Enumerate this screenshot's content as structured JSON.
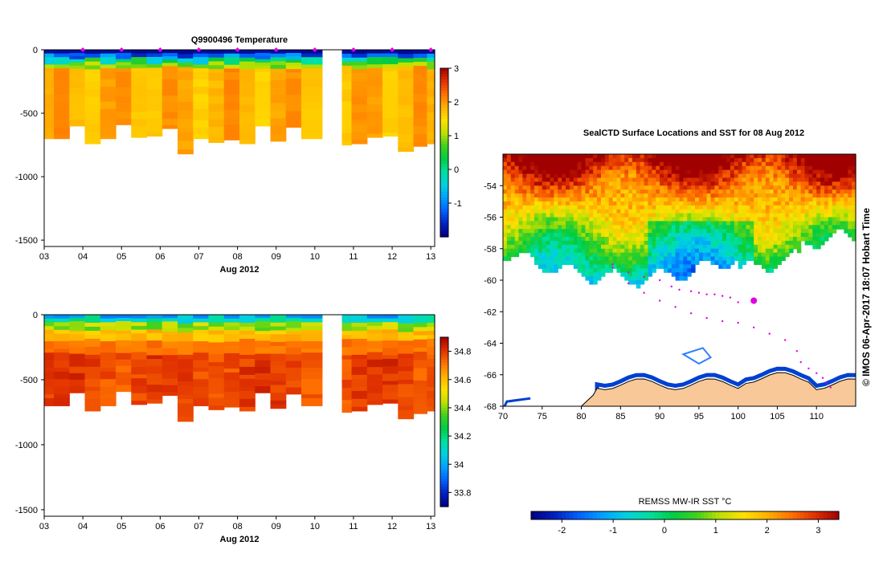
{
  "chart_data": [
    {
      "id": "temp",
      "type": "heatmap",
      "title": "Q9900496  Temperature",
      "xlabel": "Aug 2012",
      "x_ticks": [
        "03",
        "04",
        "05",
        "06",
        "07",
        "08",
        "09",
        "10",
        "11",
        "12",
        "13"
      ],
      "x_range": [
        3.0,
        13.1
      ],
      "y_ticks": [
        0,
        -500,
        -1000,
        -1500
      ],
      "y_range": [
        -1550,
        0
      ],
      "gap": [
        10.2,
        10.7
      ],
      "profile_days": [
        3.05,
        3.45,
        3.85,
        4.25,
        4.65,
        5.05,
        5.45,
        5.85,
        6.25,
        6.65,
        7.05,
        7.45,
        7.85,
        8.25,
        8.65,
        9.05,
        9.45,
        9.85,
        10.75,
        11.15,
        11.55,
        11.95,
        12.35,
        12.75,
        13.05
      ],
      "profile_bottom_depth": [
        700,
        700,
        600,
        740,
        700,
        590,
        690,
        680,
        620,
        820,
        700,
        730,
        710,
        740,
        600,
        720,
        610,
        700,
        750,
        740,
        690,
        680,
        800,
        760,
        740
      ],
      "surface_markers": [
        4.0,
        5.0,
        6.0,
        7.0,
        8.0,
        9.0,
        10.0,
        11.0,
        12.0,
        13.0
      ],
      "colorbar": {
        "min": -2.0,
        "max": 3.0,
        "ticks": [
          3,
          2,
          1,
          0,
          -1
        ],
        "colors": [
          "#000080",
          "#0020c0",
          "#0060ff",
          "#00a0ff",
          "#00d0e0",
          "#00e0a0",
          "#00cc44",
          "#40d020",
          "#c0e000",
          "#ffe000",
          "#ffb000",
          "#ff7000",
          "#e03000",
          "#a00000"
        ]
      }
    },
    {
      "id": "sal",
      "type": "heatmap",
      "title": "",
      "xlabel": "Aug 2012",
      "x_ticks": [
        "03",
        "04",
        "05",
        "06",
        "07",
        "08",
        "09",
        "10",
        "11",
        "12",
        "13"
      ],
      "x_range": [
        3.0,
        13.1
      ],
      "y_ticks": [
        0,
        -500,
        -1000,
        -1500
      ],
      "y_range": [
        -1550,
        0
      ],
      "gap": [
        10.2,
        10.7
      ],
      "colorbar": {
        "min": 33.7,
        "max": 34.9,
        "ticks": [
          34.8,
          34.6,
          34.4,
          34.2,
          34,
          33.8
        ],
        "colors": [
          "#000080",
          "#0020c0",
          "#0060ff",
          "#00a0ff",
          "#00d0e0",
          "#00e0a0",
          "#00cc44",
          "#40d020",
          "#c0e000",
          "#ffe000",
          "#ffb000",
          "#ff7000",
          "#e03000",
          "#a00000"
        ]
      }
    },
    {
      "id": "map",
      "type": "heatmap",
      "title": "SealCTD Surface Locations and SST for 08 Aug 2012",
      "x_ticks": [
        "70",
        "75",
        "80",
        "85",
        "90",
        "95",
        "100",
        "105",
        "110"
      ],
      "x_range": [
        70,
        115
      ],
      "y_ticks": [
        "-54",
        "-56",
        "-58",
        "-60",
        "-62",
        "-64",
        "-66",
        "-68"
      ],
      "y_range": [
        -68,
        -52
      ],
      "track": [
        [
          100,
          -61.4
        ],
        [
          99,
          -61.1
        ],
        [
          98,
          -61.0
        ],
        [
          97,
          -60.9
        ],
        [
          96,
          -60.9
        ],
        [
          95,
          -60.8
        ],
        [
          94,
          -60.7
        ],
        [
          92.5,
          -60.6
        ],
        [
          91.5,
          -60.4
        ],
        [
          90,
          -60.0
        ],
        [
          88,
          -59.8
        ],
        [
          86,
          -59.5
        ],
        [
          84,
          -59.0
        ],
        [
          84,
          -59.2
        ],
        [
          86,
          -60.2
        ],
        [
          88,
          -60.8
        ],
        [
          90,
          -61.3
        ],
        [
          92,
          -61.7
        ],
        [
          94,
          -62.1
        ],
        [
          96,
          -62.4
        ],
        [
          98,
          -62.6
        ],
        [
          100,
          -62.7
        ],
        [
          102,
          -63.0
        ],
        [
          104,
          -63.4
        ],
        [
          106,
          -63.8
        ],
        [
          107.5,
          -64.5
        ],
        [
          108,
          -65.2
        ],
        [
          109,
          -65.6
        ],
        [
          110,
          -65.9
        ],
        [
          110.8,
          -66.2
        ],
        [
          111.2,
          -66.5
        ],
        [
          111.8,
          -66.8
        ]
      ],
      "last_position": [
        102,
        -61.3
      ],
      "watermark": "© IMOS 06-Apr-2017 18:07 Hobart Time",
      "colorbar": {
        "title": "REMSS MW-IR SST °C",
        "min": -2.6,
        "max": 3.4,
        "ticks": [
          "-2",
          "-1",
          "0",
          "1",
          "2",
          "3"
        ],
        "colors": [
          "#000080",
          "#0020c0",
          "#0060ff",
          "#00a0ff",
          "#00d0e0",
          "#00e0a0",
          "#00cc44",
          "#40d020",
          "#c0e000",
          "#ffe000",
          "#ffb000",
          "#ff7000",
          "#e03000",
          "#a00000"
        ]
      }
    }
  ]
}
